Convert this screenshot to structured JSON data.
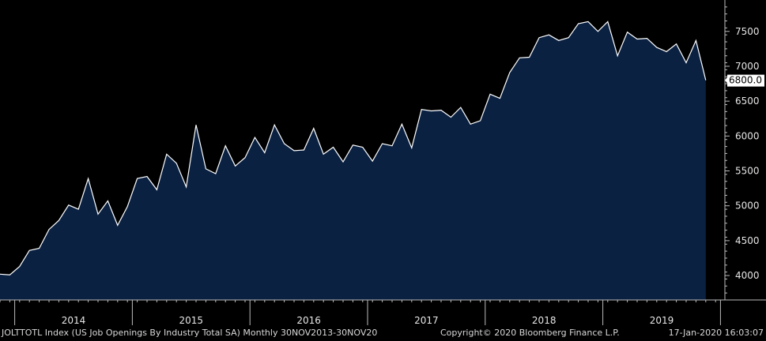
{
  "footer": {
    "index_desc": "JOLTTOTL Index (US Job Openings By Industry Total SA)  Monthly 30NOV2013-30NOV20",
    "copyright": "Copyright© 2020 Bloomberg Finance L.P.",
    "timestamp": "17-Jan-2020 16:03:07"
  },
  "colors": {
    "background": "#000000",
    "area_fill": "#0b2142",
    "line": "#ffffff",
    "axis": "#bbbbbb",
    "text": "#e6e6e6",
    "last_label_bg": "#ffffff"
  },
  "chart_data": {
    "type": "area",
    "title": "",
    "xlabel": "",
    "ylabel": "",
    "ylim": [
      3650,
      7950
    ],
    "yticks": [
      4000,
      4500,
      5000,
      5500,
      6000,
      6500,
      7000,
      7500
    ],
    "year_labels": [
      "2014",
      "2015",
      "2016",
      "2017",
      "2018",
      "2019"
    ],
    "last_value_label": "6800.0",
    "grid": false,
    "series": [
      {
        "values": [
          4020,
          4010,
          4130,
          4360,
          4390,
          4660,
          4790,
          5010,
          4950,
          5390,
          4880,
          5070,
          4720,
          4990,
          5390,
          5420,
          5230,
          5740,
          5610,
          5270,
          6160,
          5530,
          5460,
          5860,
          5570,
          5690,
          5980,
          5760,
          6160,
          5890,
          5790,
          5800,
          6110,
          5740,
          5840,
          5630,
          5870,
          5840,
          5640,
          5890,
          5860,
          6170,
          5830,
          6380,
          6360,
          6370,
          6270,
          6410,
          6170,
          6220,
          6600,
          6540,
          6910,
          7120,
          7130,
          7410,
          7450,
          7370,
          7410,
          7610,
          7640,
          7500,
          7640,
          7150,
          7490,
          7390,
          7400,
          7270,
          7210,
          7320,
          7050,
          7370,
          6800
        ]
      }
    ]
  }
}
